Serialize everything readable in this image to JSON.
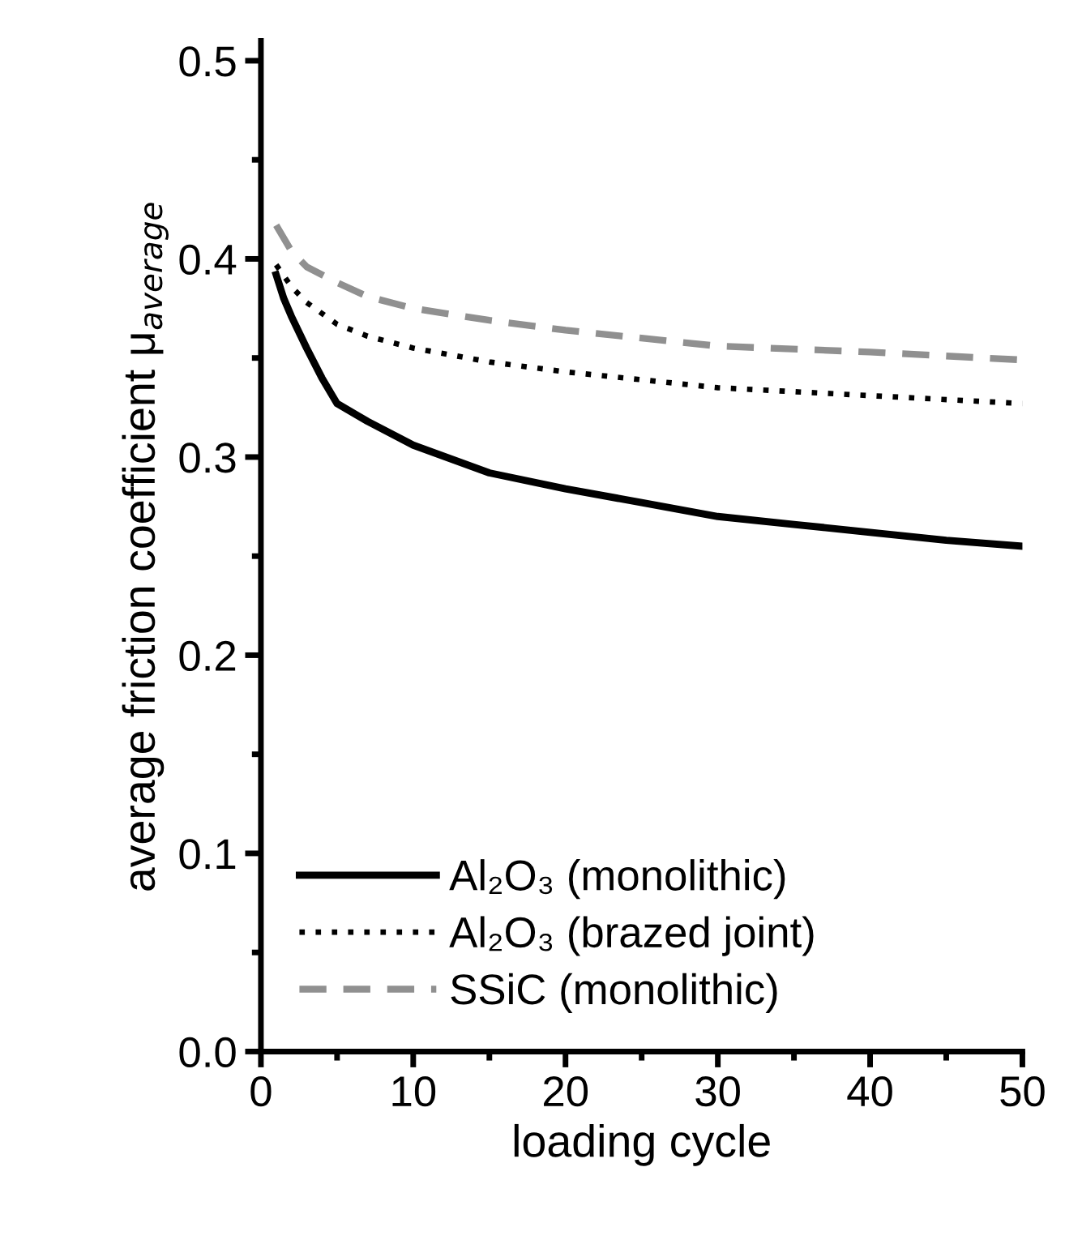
{
  "chart_data": {
    "type": "line",
    "xlabel": "loading cycle",
    "ylabel": "average friction coefficient μ$_{average}$",
    "xlim": [
      0,
      50
    ],
    "xticks": [
      0,
      10,
      20,
      30,
      40,
      50
    ],
    "ylim": [
      0,
      0.51
    ],
    "yticks": [
      {
        "value": 0,
        "label": "0.0"
      },
      0.1,
      0.2,
      0.3,
      0.4,
      0.5
    ],
    "grid": false,
    "legend": "bottom left",
    "marker": "none",
    "series": [
      {
        "name": "Al₂O₃ (monolithic)",
        "color": "#000000",
        "line_style": "solid",
        "x": [
          1,
          1.5,
          2,
          3,
          4,
          5,
          7,
          10,
          15,
          20,
          25,
          30,
          35,
          40,
          45,
          50
        ],
        "values": [
          0.392,
          0.38,
          0.371,
          0.355,
          0.34,
          0.327,
          0.318,
          0.306,
          0.292,
          0.284,
          0.277,
          0.27,
          0.266,
          0.262,
          0.258,
          0.255
        ]
      },
      {
        "name": "Al₂O₃ (brazed joint)",
        "color": "#000000",
        "line_style": "dotted",
        "x": [
          1,
          2,
          3,
          5,
          7,
          10,
          15,
          20,
          30,
          40,
          50
        ],
        "values": [
          0.397,
          0.386,
          0.378,
          0.367,
          0.361,
          0.355,
          0.348,
          0.343,
          0.335,
          0.331,
          0.327
        ]
      },
      {
        "name": "SSiC (monolithic)",
        "color": "#909090",
        "line_style": "dashed",
        "x": [
          1,
          2,
          3,
          5,
          7,
          10,
          15,
          20,
          30,
          40,
          50
        ],
        "values": [
          0.417,
          0.404,
          0.396,
          0.388,
          0.381,
          0.375,
          0.369,
          0.364,
          0.356,
          0.353,
          0.349
        ]
      }
    ]
  }
}
